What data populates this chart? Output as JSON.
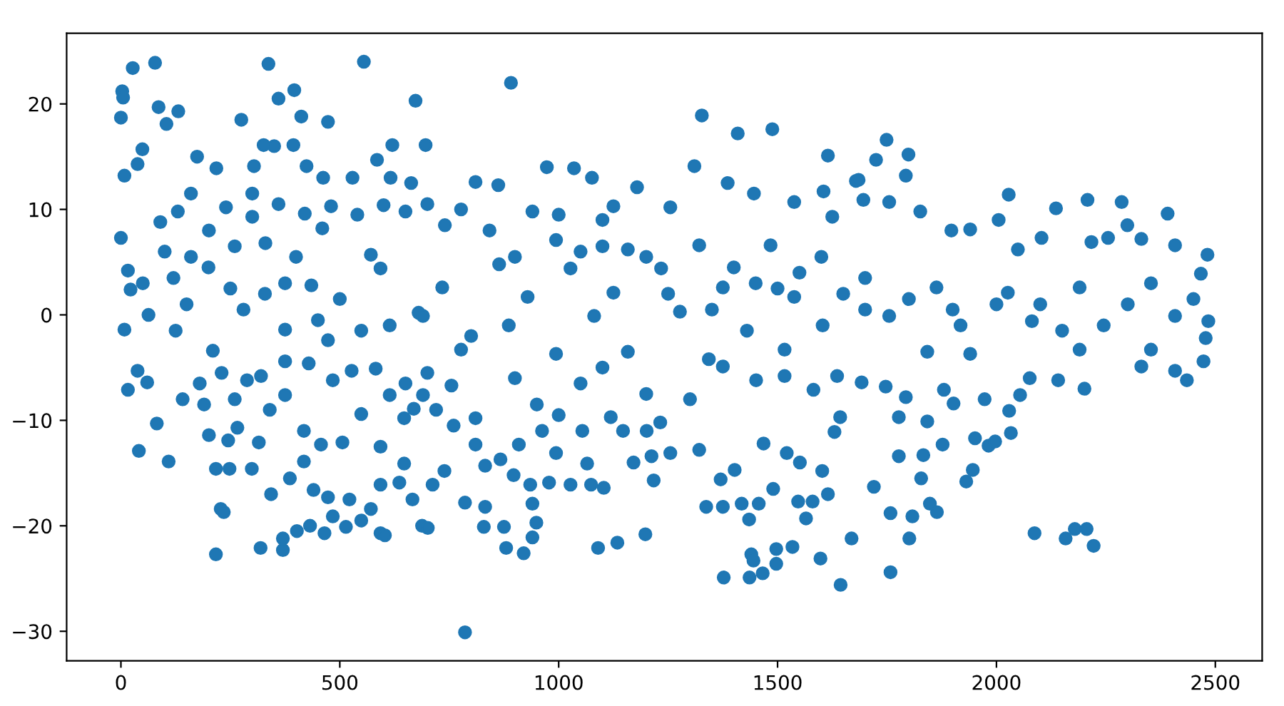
{
  "chart_data": {
    "type": "scatter",
    "color": "#1f77b4",
    "marker": "circle",
    "grid": false,
    "xlim": [
      -124,
      2607
    ],
    "ylim": [
      -32.8,
      26.7
    ],
    "xticks": [
      0,
      500,
      1000,
      1500,
      2000,
      2500
    ],
    "yticks": [
      {
        "value": -30,
        "label": "−30"
      },
      {
        "value": -20,
        "label": "−20"
      },
      {
        "value": -10,
        "label": "−10"
      },
      0,
      10,
      20
    ],
    "x": [
      27,
      78,
      337,
      555,
      3,
      5,
      0,
      86,
      131,
      360,
      396,
      412,
      275,
      473,
      673,
      891,
      1327,
      1409,
      1488,
      1615,
      1749,
      1799,
      1793,
      2028,
      2482,
      2391,
      2286,
      2208,
      2136,
      217,
      319,
      370,
      370,
      228,
      235,
      402,
      432,
      465,
      514,
      549,
      593,
      603,
      688,
      217,
      248,
      109,
      41,
      16,
      786,
      880,
      920,
      940,
      949,
      1090,
      1134,
      1198,
      1377,
      1436,
      1466,
      1440,
      1445,
      1497,
      1497,
      1534,
      1598,
      1644,
      1669,
      829,
      875,
      701,
      786,
      1435,
      1565,
      1321,
      1337,
      1255,
      1468,
      1643,
      2087,
      2158,
      2179,
      2206,
      2222,
      1758,
      1801,
      1758,
      1808,
      1864,
      1848,
      1828,
      1931,
      1946,
      1720,
      1833,
      1777,
      1982,
      1997,
      1877,
      1951,
      2033,
      2029,
      2201,
      2435,
      1842,
      1777,
      8,
      38,
      49,
      104,
      174,
      218,
      304,
      326,
      350,
      394,
      424,
      462,
      529,
      585,
      620,
      616,
      663,
      696,
      0,
      16,
      22,
      8,
      63,
      130,
      201,
      375,
      329,
      435,
      571,
      593,
      680,
      375,
      473,
      549,
      614,
      210,
      125,
      38,
      60,
      82,
      141,
      190,
      201,
      245,
      288,
      266,
      315,
      299,
      343,
      386,
      418,
      440,
      473,
      484,
      522,
      571,
      593,
      636,
      647,
      666,
      375,
      429,
      484,
      527,
      582,
      614,
      669,
      375,
      418,
      457,
      506,
      549,
      593,
      647,
      973,
      1035,
      1076,
      862,
      810,
      1179,
      1310,
      1386,
      1446,
      1605,
      1679,
      1538,
      1625,
      777,
      940,
      1125,
      1255,
      842,
      994,
      1158,
      1321,
      1484,
      864,
      1027,
      1234,
      1375,
      1538,
      734,
      929,
      1125,
      690,
      886,
      1081,
      1277,
      1430,
      1603,
      777,
      994,
      1158,
      1343,
      1516,
      690,
      755,
      810,
      712,
      739,
      810,
      832,
      832,
      867,
      897,
      909,
      935,
      962,
      978,
      994,
      1027,
      1054,
      1065,
      1074,
      1103,
      1119,
      1147,
      1171,
      1201,
      1217,
      1232,
      1212,
      940,
      1402,
      1370,
      1418,
      1457,
      1490,
      1521,
      1551,
      1547,
      1580,
      1602,
      1615,
      1630,
      1375,
      1516,
      1582,
      1636,
      1375,
      1451,
      1725,
      1685,
      1696,
      1755,
      1826,
      1897,
      1940,
      2005,
      2049,
      2103,
      2217,
      2255,
      2299,
      2331,
      2408,
      2467,
      1700,
      1863,
      2026,
      2190,
      2353,
      1755,
      1918,
      2081,
      2245,
      2408,
      2484,
      1842,
      1940,
      2190,
      2353,
      2478,
      1692,
      1747,
      1793,
      1880,
      1902,
      1973,
      2054,
      2076,
      2141,
      2408,
      2473,
      2331,
      240,
      300,
      360,
      420,
      480,
      540,
      600,
      650,
      260,
      160,
      120,
      90,
      300,
      460,
      160,
      700,
      740,
      1050,
      1200,
      1250,
      1400,
      1450,
      1500,
      1550,
      1650,
      1800,
      1900,
      2000,
      2100,
      2150,
      2300,
      2450,
      1600,
      1700,
      1350,
      1100,
      900,
      800,
      700,
      720,
      760,
      650,
      900,
      950,
      1000,
      1050,
      1100,
      1200,
      1300,
      1000,
      1100,
      50,
      100,
      150,
      200,
      250,
      280,
      330,
      400,
      450,
      500,
      180,
      230,
      260,
      320,
      340
    ],
    "values": [
      23.4,
      23.9,
      23.8,
      24.0,
      21.2,
      20.6,
      18.7,
      19.7,
      19.3,
      20.5,
      21.3,
      18.8,
      18.5,
      18.3,
      20.3,
      22.0,
      18.9,
      17.2,
      17.6,
      15.1,
      16.6,
      15.2,
      13.2,
      11.4,
      5.7,
      9.6,
      10.7,
      10.9,
      10.1,
      -22.7,
      -22.1,
      -22.3,
      -21.2,
      -18.4,
      -18.7,
      -20.5,
      -20.0,
      -20.7,
      -20.1,
      -19.5,
      -20.7,
      -20.9,
      -20.0,
      -14.6,
      -14.6,
      -13.9,
      -12.9,
      -7.1,
      -30.1,
      -22.1,
      -22.6,
      -21.1,
      -19.7,
      -22.1,
      -21.6,
      -20.8,
      -24.9,
      -24.9,
      -24.5,
      -22.7,
      -23.3,
      -23.6,
      -22.2,
      -22.0,
      -23.1,
      -25.6,
      -21.2,
      -20.1,
      -20.1,
      -20.2,
      -17.8,
      -19.4,
      -19.3,
      -12.8,
      -18.2,
      -13.1,
      -12.2,
      -9.7,
      -20.7,
      -21.2,
      -20.3,
      -20.3,
      -21.9,
      -24.4,
      -21.2,
      -18.8,
      -19.1,
      -18.7,
      -17.9,
      -15.5,
      -15.8,
      -14.7,
      -16.3,
      -13.3,
      -13.4,
      -12.4,
      -12.0,
      -12.3,
      -11.7,
      -11.2,
      -9.1,
      -7.0,
      -6.2,
      -10.1,
      -9.7,
      13.2,
      14.3,
      15.7,
      18.1,
      15.0,
      13.9,
      14.1,
      16.1,
      16.0,
      16.1,
      14.1,
      13.0,
      13.0,
      14.7,
      16.1,
      13.0,
      12.5,
      16.1,
      7.3,
      4.2,
      2.4,
      -1.4,
      0.0,
      9.8,
      8.0,
      3.0,
      2.0,
      2.8,
      5.7,
      4.4,
      0.2,
      -1.4,
      -2.4,
      -1.5,
      -1.0,
      -3.4,
      -1.5,
      -5.3,
      -6.4,
      -10.3,
      -8.0,
      -8.5,
      -11.4,
      -11.9,
      -6.2,
      -10.7,
      -12.1,
      -14.6,
      -17.0,
      -15.5,
      -13.9,
      -16.6,
      -17.3,
      -19.1,
      -17.5,
      -18.4,
      -16.1,
      -15.9,
      -14.1,
      -17.5,
      -4.4,
      -4.6,
      -6.2,
      -5.3,
      -5.1,
      -7.6,
      -8.9,
      -7.6,
      -11.0,
      -12.3,
      -12.1,
      -9.4,
      -12.5,
      -9.8,
      14.0,
      13.9,
      13.0,
      12.3,
      12.6,
      12.1,
      14.1,
      12.5,
      11.5,
      11.7,
      12.7,
      10.7,
      9.3,
      10.0,
      9.8,
      10.3,
      10.2,
      8.0,
      7.1,
      6.2,
      6.6,
      6.6,
      4.8,
      4.4,
      4.4,
      2.6,
      1.7,
      2.6,
      1.7,
      2.1,
      -0.1,
      -1.0,
      -0.1,
      0.3,
      -1.5,
      -1.0,
      -3.3,
      -3.7,
      -3.5,
      -4.2,
      -3.3,
      -7.6,
      -6.7,
      -9.8,
      -16.1,
      -14.8,
      -12.3,
      -14.3,
      -18.2,
      -13.7,
      -15.2,
      -12.3,
      -16.1,
      -11.0,
      -15.9,
      -13.1,
      -16.1,
      -11.0,
      -14.1,
      -16.1,
      -16.4,
      -9.7,
      -11.0,
      -14.0,
      -11.0,
      -15.7,
      -10.2,
      -13.4,
      -17.9,
      -14.7,
      -15.6,
      -17.9,
      -17.9,
      -16.5,
      -13.1,
      -14.0,
      -17.7,
      -17.7,
      -14.8,
      -17.0,
      -11.1,
      -18.2,
      -5.8,
      -7.1,
      -5.8,
      -4.9,
      -6.2,
      14.7,
      12.8,
      10.9,
      10.7,
      9.8,
      8.0,
      8.1,
      9.0,
      6.2,
      7.3,
      6.9,
      7.3,
      8.5,
      7.2,
      6.6,
      3.9,
      3.5,
      2.6,
      2.1,
      2.6,
      3.0,
      -0.1,
      -1.0,
      -0.6,
      -1.0,
      -0.1,
      -0.6,
      -3.5,
      -3.7,
      -3.3,
      -3.3,
      -2.2,
      -6.4,
      -6.8,
      -7.8,
      -7.1,
      -8.4,
      -8.0,
      -7.6,
      -6.0,
      -6.2,
      -5.3,
      -4.4,
      -4.9,
      10.2,
      9.3,
      10.5,
      9.6,
      10.3,
      9.5,
      10.4,
      9.8,
      6.5,
      5.5,
      3.5,
      8.8,
      11.5,
      8.2,
      11.5,
      10.5,
      8.5,
      6.0,
      5.5,
      2.0,
      4.5,
      3.0,
      2.5,
      4.0,
      2.0,
      1.5,
      0.5,
      1.0,
      1.0,
      -1.5,
      1.0,
      1.5,
      5.5,
      0.5,
      0.5,
      6.5,
      5.5,
      -2.0,
      -5.5,
      -9.0,
      -10.5,
      -6.5,
      -6.0,
      -8.5,
      -9.5,
      -6.5,
      -5.0,
      -7.5,
      -8.0,
      9.5,
      9.0,
      3.0,
      6.0,
      1.0,
      4.5,
      2.5,
      0.5,
      6.8,
      5.5,
      -0.5,
      1.5,
      -6.5,
      -5.5,
      -8.0,
      -5.8,
      -9.0
    ]
  }
}
